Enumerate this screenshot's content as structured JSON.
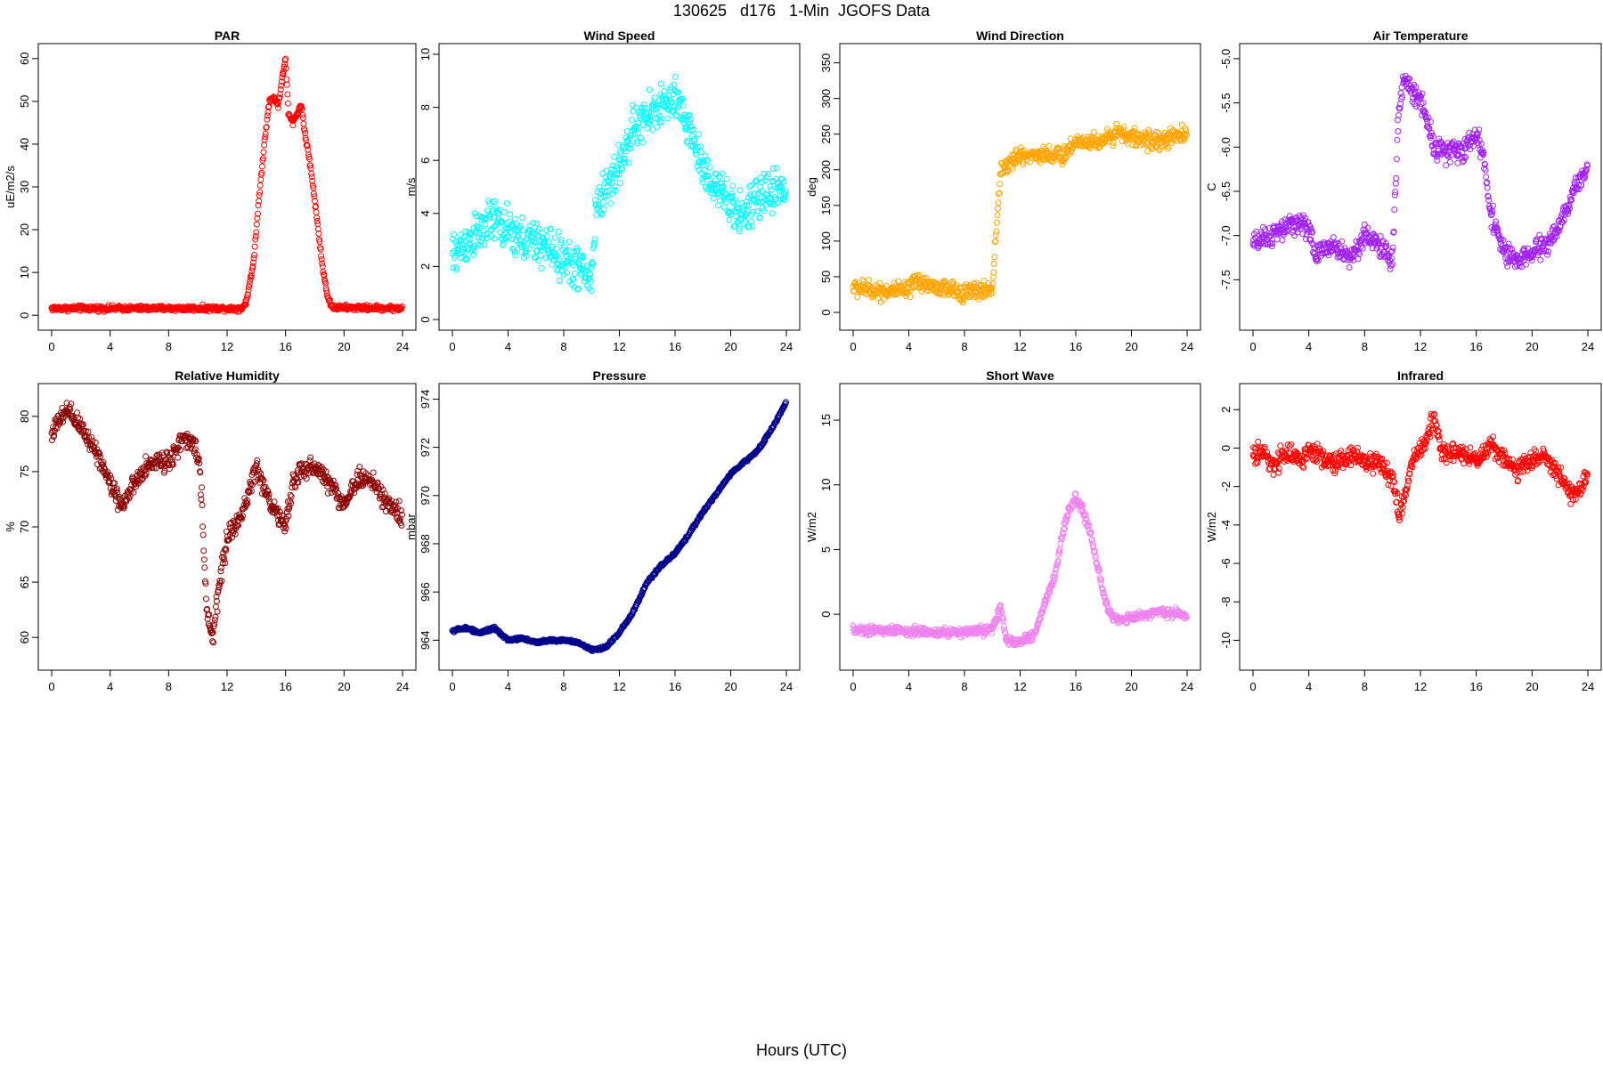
{
  "page": {
    "title": "130625   d176   1-Min  JGOFS Data",
    "xlabel": "Hours (UTC)"
  },
  "chart_data": [
    {
      "type": "scatter",
      "title": "PAR",
      "ylabel": "uE/m2/s",
      "color": "#ff0000",
      "xlim": [
        0,
        24
      ],
      "ylim": [
        -1,
        61
      ],
      "xticks": [
        0,
        4,
        8,
        12,
        16,
        20,
        24
      ],
      "yticks": [
        0,
        10,
        20,
        30,
        40,
        50,
        60
      ],
      "curve": [
        [
          0,
          1.6
        ],
        [
          13,
          1.6
        ],
        [
          13.3,
          3
        ],
        [
          13.8,
          12
        ],
        [
          14.2,
          28
        ],
        [
          14.6,
          42
        ],
        [
          14.9,
          50
        ],
        [
          15.2,
          51
        ],
        [
          15.5,
          49
        ],
        [
          15.8,
          56
        ],
        [
          16.0,
          60
        ],
        [
          16.2,
          47
        ],
        [
          16.5,
          45
        ],
        [
          16.9,
          48
        ],
        [
          17.1,
          49
        ],
        [
          17.3,
          43
        ],
        [
          17.7,
          35
        ],
        [
          18.1,
          24
        ],
        [
          18.5,
          12
        ],
        [
          18.9,
          4
        ],
        [
          19.2,
          1.8
        ],
        [
          24,
          1.6
        ]
      ],
      "noise": 0.6
    },
    {
      "type": "scatter",
      "title": "Wind Speed",
      "ylabel": "m/s",
      "color": "#00ffff",
      "xlim": [
        0,
        24
      ],
      "ylim": [
        0,
        10
      ],
      "xticks": [
        0,
        4,
        8,
        12,
        16,
        20,
        24
      ],
      "yticks": [
        0,
        2,
        4,
        6,
        8,
        10
      ],
      "curve": [
        [
          0,
          2.4
        ],
        [
          1,
          2.9
        ],
        [
          2,
          3.3
        ],
        [
          3,
          3.8
        ],
        [
          4,
          3.3
        ],
        [
          5,
          3.0
        ],
        [
          6,
          2.9
        ],
        [
          7,
          2.7
        ],
        [
          8,
          2.2
        ],
        [
          9,
          2.0
        ],
        [
          10,
          1.5
        ],
        [
          10.3,
          4.2
        ],
        [
          11,
          4.9
        ],
        [
          12,
          5.8
        ],
        [
          13,
          7.2
        ],
        [
          14,
          7.6
        ],
        [
          15,
          8.1
        ],
        [
          16,
          8.2
        ],
        [
          17,
          7.3
        ],
        [
          18,
          5.7
        ],
        [
          19,
          5.0
        ],
        [
          20,
          4.2
        ],
        [
          21,
          4.0
        ],
        [
          22,
          4.5
        ],
        [
          23,
          4.9
        ],
        [
          24,
          5.0
        ]
      ],
      "noise": 0.8
    },
    {
      "type": "scatter",
      "title": "Wind Direction",
      "ylabel": "deg",
      "color": "#ffa500",
      "xlim": [
        0,
        24
      ],
      "ylim": [
        -10,
        362
      ],
      "xticks": [
        0,
        4,
        8,
        12,
        16,
        20,
        24
      ],
      "yticks": [
        0,
        50,
        100,
        150,
        200,
        250,
        300,
        350
      ],
      "curve": [
        [
          0,
          35
        ],
        [
          2,
          30
        ],
        [
          4,
          30
        ],
        [
          4.5,
          45
        ],
        [
          6,
          35
        ],
        [
          8,
          28
        ],
        [
          9,
          30
        ],
        [
          10,
          32
        ],
        [
          10.3,
          120
        ],
        [
          10.6,
          200
        ],
        [
          11,
          205
        ],
        [
          12,
          220
        ],
        [
          14,
          222
        ],
        [
          15,
          218
        ],
        [
          16,
          240
        ],
        [
          18,
          240
        ],
        [
          19,
          255
        ],
        [
          20,
          245
        ],
        [
          22,
          240
        ],
        [
          24,
          250
        ]
      ],
      "noise": 12
    },
    {
      "type": "scatter",
      "title": "Air Temperature",
      "ylabel": "C",
      "color": "#a020f0",
      "xlim": [
        0,
        24
      ],
      "ylim": [
        -7.95,
        -4.95
      ],
      "xticks": [
        0,
        4,
        8,
        12,
        16,
        20,
        24
      ],
      "yticks": [
        -7.5,
        -7.0,
        -6.5,
        -6.0,
        -5.5,
        -5.0
      ],
      "curve": [
        [
          0,
          -7.1
        ],
        [
          2,
          -6.95
        ],
        [
          3,
          -6.85
        ],
        [
          4,
          -6.9
        ],
        [
          4.5,
          -7.25
        ],
        [
          5.5,
          -7.1
        ],
        [
          7,
          -7.25
        ],
        [
          8,
          -7.0
        ],
        [
          9,
          -7.1
        ],
        [
          10,
          -7.3
        ],
        [
          10.4,
          -5.7
        ],
        [
          10.8,
          -5.2
        ],
        [
          11.5,
          -5.4
        ],
        [
          12,
          -5.45
        ],
        [
          12.5,
          -5.7
        ],
        [
          13,
          -6.0
        ],
        [
          14,
          -6.05
        ],
        [
          15,
          -6.05
        ],
        [
          16,
          -5.85
        ],
        [
          16.5,
          -6.1
        ],
        [
          17,
          -6.7
        ],
        [
          18,
          -7.2
        ],
        [
          19,
          -7.3
        ],
        [
          20,
          -7.2
        ],
        [
          21,
          -7.1
        ],
        [
          22,
          -6.9
        ],
        [
          23,
          -6.5
        ],
        [
          24,
          -6.2
        ]
      ],
      "noise": 0.12
    },
    {
      "type": "scatter",
      "title": "Relative Humidity",
      "ylabel": "%",
      "color": "#8b0000",
      "xlim": [
        0,
        24
      ],
      "ylim": [
        58,
        82
      ],
      "xticks": [
        0,
        4,
        8,
        12,
        16,
        20,
        24
      ],
      "yticks": [
        60,
        65,
        70,
        75,
        80
      ],
      "curve": [
        [
          0,
          78.5
        ],
        [
          1,
          80.5
        ],
        [
          2,
          79
        ],
        [
          3,
          77
        ],
        [
          4,
          74
        ],
        [
          4.8,
          72
        ],
        [
          6,
          74.5
        ],
        [
          7,
          76
        ],
        [
          8,
          76
        ],
        [
          9,
          78
        ],
        [
          10,
          77
        ],
        [
          10.3,
          72
        ],
        [
          10.6,
          62
        ],
        [
          11,
          60
        ],
        [
          11.5,
          65
        ],
        [
          12,
          69
        ],
        [
          13,
          71
        ],
        [
          14,
          75.5
        ],
        [
          15,
          72
        ],
        [
          16,
          70
        ],
        [
          16.5,
          74
        ],
        [
          17,
          75
        ],
        [
          18,
          75.5
        ],
        [
          19,
          74
        ],
        [
          20,
          72
        ],
        [
          21,
          74.5
        ],
        [
          22,
          74
        ],
        [
          23,
          72
        ],
        [
          24,
          71
        ]
      ],
      "noise": 0.9
    },
    {
      "type": "scatter",
      "title": "Pressure",
      "ylabel": "mbar",
      "color": "#00008b",
      "xlim": [
        0,
        24
      ],
      "ylim": [
        963.2,
        974.2
      ],
      "xticks": [
        0,
        4,
        8,
        12,
        16,
        20,
        24
      ],
      "yticks": [
        964,
        966,
        968,
        970,
        972,
        974
      ],
      "curve": [
        [
          0,
          964.4
        ],
        [
          1,
          964.5
        ],
        [
          2,
          964.3
        ],
        [
          3,
          964.5
        ],
        [
          4,
          964.0
        ],
        [
          5,
          964.1
        ],
        [
          6,
          963.9
        ],
        [
          7,
          964.0
        ],
        [
          8,
          964.0
        ],
        [
          9,
          963.9
        ],
        [
          10,
          963.6
        ],
        [
          11,
          963.7
        ],
        [
          12,
          964.3
        ],
        [
          13,
          965.2
        ],
        [
          14,
          966.4
        ],
        [
          15,
          967.1
        ],
        [
          16,
          967.6
        ],
        [
          17,
          968.4
        ],
        [
          18,
          969.3
        ],
        [
          19,
          970.1
        ],
        [
          20,
          970.9
        ],
        [
          21,
          971.4
        ],
        [
          22,
          971.9
        ],
        [
          23,
          972.8
        ],
        [
          24,
          973.9
        ]
      ],
      "noise": 0.06
    },
    {
      "type": "scatter",
      "title": "Short Wave",
      "ylabel": "W/m2",
      "color": "#ee82ee",
      "xlim": [
        0,
        24
      ],
      "ylim": [
        -3.5,
        17
      ],
      "xticks": [
        0,
        4,
        8,
        12,
        16,
        20,
        24
      ],
      "yticks": [
        0,
        5,
        10,
        15
      ],
      "curve": [
        [
          0,
          -1.2
        ],
        [
          4,
          -1.3
        ],
        [
          6,
          -1.4
        ],
        [
          8,
          -1.4
        ],
        [
          10,
          -1.2
        ],
        [
          10.6,
          0.5
        ],
        [
          11,
          -2
        ],
        [
          12,
          -2.2
        ],
        [
          13,
          -1.6
        ],
        [
          13.5,
          0
        ],
        [
          14.5,
          3
        ],
        [
          15,
          6
        ],
        [
          15.5,
          8
        ],
        [
          16,
          9
        ],
        [
          16.5,
          8
        ],
        [
          17,
          6.5
        ],
        [
          17.5,
          4
        ],
        [
          18,
          1.5
        ],
        [
          18.5,
          0
        ],
        [
          19,
          -0.5
        ],
        [
          20,
          -0.3
        ],
        [
          21,
          0
        ],
        [
          22,
          0.2
        ],
        [
          24,
          0.0
        ]
      ],
      "noise": 0.35
    },
    {
      "type": "scatter",
      "title": "Infrared",
      "ylabel": "W/m2",
      "color": "#ff0000",
      "xlim": [
        0,
        24
      ],
      "ylim": [
        -11,
        2.8
      ],
      "xticks": [
        0,
        4,
        8,
        12,
        16,
        20,
        24
      ],
      "yticks": [
        -10,
        -8,
        -6,
        -4,
        -2,
        0,
        2
      ],
      "curve": [
        [
          0,
          -0.3
        ],
        [
          1,
          -0.3
        ],
        [
          1.5,
          -1.2
        ],
        [
          2,
          -0.3
        ],
        [
          3,
          -0.3
        ],
        [
          3.5,
          -0.8
        ],
        [
          4,
          0
        ],
        [
          5,
          -0.5
        ],
        [
          6,
          -0.8
        ],
        [
          7,
          -0.4
        ],
        [
          8,
          -0.6
        ],
        [
          9,
          -0.8
        ],
        [
          10,
          -1.5
        ],
        [
          10.5,
          -3.5
        ],
        [
          11,
          -2
        ],
        [
          11.5,
          -0.5
        ],
        [
          12.5,
          0.5
        ],
        [
          13,
          1.5
        ],
        [
          13.5,
          -0.2
        ],
        [
          15,
          -0.2
        ],
        [
          16,
          -0.8
        ],
        [
          17,
          0.2
        ],
        [
          18,
          -0.5
        ],
        [
          19,
          -1.2
        ],
        [
          20,
          -0.5
        ],
        [
          21,
          -0.6
        ],
        [
          22,
          -1.5
        ],
        [
          23,
          -2.5
        ],
        [
          24,
          -1.5
        ]
      ],
      "noise": 0.5
    }
  ]
}
